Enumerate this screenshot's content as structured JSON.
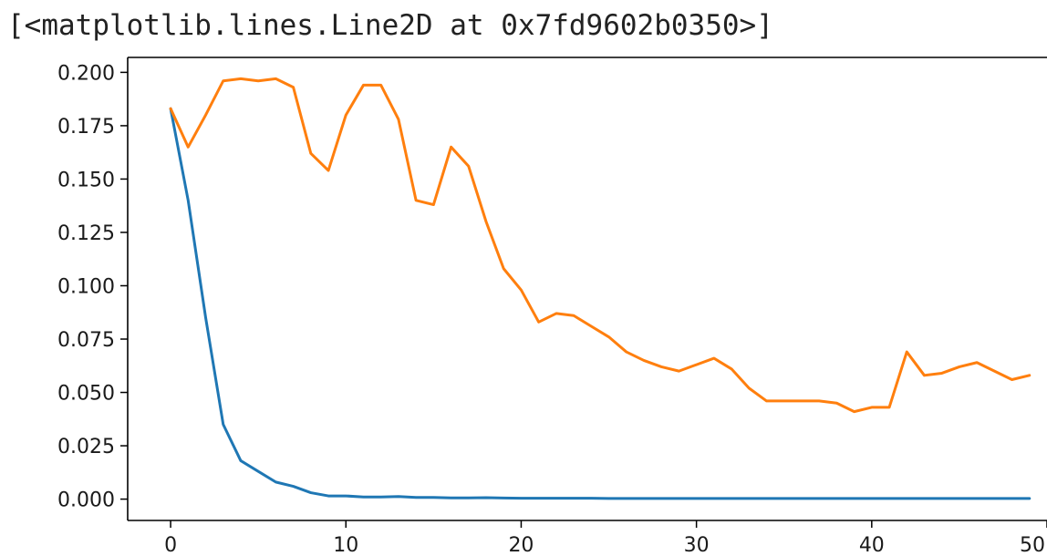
{
  "output_repr": "[<matplotlib.lines.Line2D at 0x7fd9602b0350>]",
  "chart_data": {
    "type": "line",
    "title": "",
    "xlabel": "",
    "ylabel": "",
    "xlim": [
      -2.45,
      50
    ],
    "ylim": [
      -0.01,
      0.207
    ],
    "grid": false,
    "x_ticks": [
      0,
      10,
      20,
      30,
      40,
      50
    ],
    "x_tick_labels": [
      "0",
      "10",
      "20",
      "30",
      "40",
      "50"
    ],
    "y_ticks": [
      0.0,
      0.025,
      0.05,
      0.075,
      0.1,
      0.125,
      0.15,
      0.175,
      0.2
    ],
    "y_tick_labels": [
      "0.000",
      "0.025",
      "0.050",
      "0.075",
      "0.100",
      "0.125",
      "0.150",
      "0.175",
      "0.200"
    ],
    "x": [
      0,
      1,
      2,
      3,
      4,
      5,
      6,
      7,
      8,
      9,
      10,
      11,
      12,
      13,
      14,
      15,
      16,
      17,
      18,
      19,
      20,
      21,
      22,
      23,
      24,
      25,
      26,
      27,
      28,
      29,
      30,
      31,
      32,
      33,
      34,
      35,
      36,
      37,
      38,
      39,
      40,
      41,
      42,
      43,
      44,
      45,
      46,
      47,
      48,
      49
    ],
    "series": [
      {
        "color": "#1f77b4",
        "values": [
          0.183,
          0.14,
          0.085,
          0.035,
          0.018,
          0.013,
          0.008,
          0.006,
          0.003,
          0.0015,
          0.0015,
          0.001,
          0.001,
          0.0012,
          0.0008,
          0.0008,
          0.0006,
          0.0006,
          0.0007,
          0.0005,
          0.0004,
          0.0004,
          0.0004,
          0.0004,
          0.0004,
          0.0003,
          0.0003,
          0.0003,
          0.0003,
          0.0003,
          0.0003,
          0.0003,
          0.0003,
          0.0003,
          0.0003,
          0.0003,
          0.0003,
          0.0003,
          0.0003,
          0.0003,
          0.0003,
          0.0003,
          0.0003,
          0.0003,
          0.0003,
          0.0003,
          0.0003,
          0.0003,
          0.0003,
          0.0003
        ]
      },
      {
        "color": "#ff7f0e",
        "values": [
          0.183,
          0.165,
          0.18,
          0.196,
          0.197,
          0.196,
          0.197,
          0.193,
          0.162,
          0.154,
          0.18,
          0.194,
          0.194,
          0.178,
          0.14,
          0.138,
          0.165,
          0.156,
          0.13,
          0.108,
          0.098,
          0.083,
          0.087,
          0.086,
          0.081,
          0.076,
          0.069,
          0.065,
          0.062,
          0.06,
          0.063,
          0.066,
          0.061,
          0.052,
          0.046,
          0.046,
          0.046,
          0.046,
          0.045,
          0.041,
          0.043,
          0.043,
          0.069,
          0.058,
          0.059,
          0.062,
          0.064,
          0.06,
          0.056,
          0.058
        ]
      }
    ]
  }
}
